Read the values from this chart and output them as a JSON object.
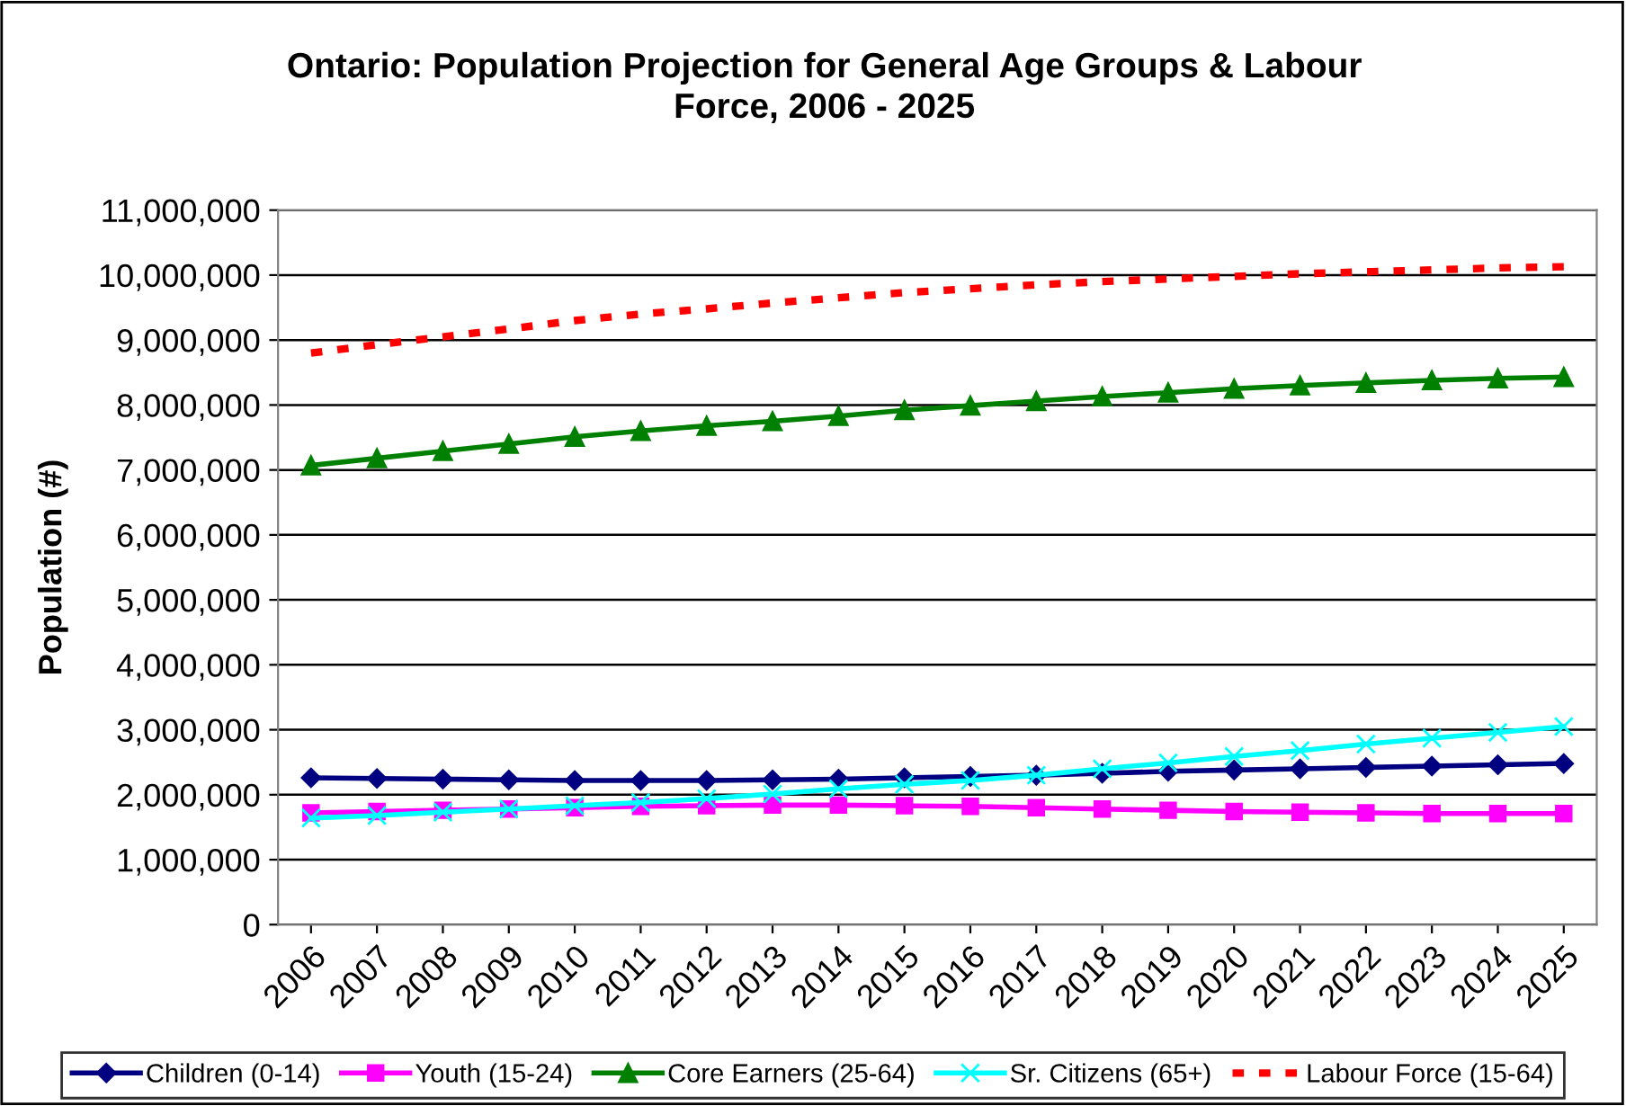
{
  "chart_data": {
    "type": "line",
    "title": "Ontario: Population Projection for General Age Groups & Labour Force, 2006 - 2025",
    "ylabel": "Population (#)",
    "categories": [
      "2006",
      "2007",
      "2008",
      "2009",
      "2010",
      "2011",
      "2012",
      "2013",
      "2014",
      "2015",
      "2016",
      "2017",
      "2018",
      "2019",
      "2020",
      "2021",
      "2022",
      "2023",
      "2024",
      "2025"
    ],
    "ylim": [
      0,
      11000000
    ],
    "yticks": [
      {
        "value": 0,
        "label": "0"
      },
      {
        "value": 1000000,
        "label": "1,000,000"
      },
      {
        "value": 2000000,
        "label": "2,000,000"
      },
      {
        "value": 3000000,
        "label": "3,000,000"
      },
      {
        "value": 4000000,
        "label": "4,000,000"
      },
      {
        "value": 5000000,
        "label": "5,000,000"
      },
      {
        "value": 6000000,
        "label": "6,000,000"
      },
      {
        "value": 7000000,
        "label": "7,000,000"
      },
      {
        "value": 8000000,
        "label": "8,000,000"
      },
      {
        "value": 9000000,
        "label": "9,000,000"
      },
      {
        "value": 10000000,
        "label": "10,000,000"
      },
      {
        "value": 11000000,
        "label": "11,000,000"
      }
    ],
    "grid": "y",
    "legend": "bottom",
    "series": [
      {
        "name": "Children (0-14)",
        "color": "#000080",
        "marker": "diamond",
        "line_style": "solid",
        "values": [
          2260000,
          2250000,
          2240000,
          2230000,
          2220000,
          2220000,
          2220000,
          2230000,
          2240000,
          2260000,
          2280000,
          2300000,
          2330000,
          2360000,
          2380000,
          2400000,
          2420000,
          2440000,
          2460000,
          2480000
        ]
      },
      {
        "name": "Youth (15-24)",
        "color": "#ff00ff",
        "marker": "square",
        "line_style": "solid",
        "values": [
          1720000,
          1740000,
          1760000,
          1780000,
          1800000,
          1820000,
          1830000,
          1840000,
          1840000,
          1830000,
          1820000,
          1800000,
          1780000,
          1760000,
          1740000,
          1730000,
          1720000,
          1710000,
          1710000,
          1710000
        ]
      },
      {
        "name": "Core Earners (25-64)",
        "color": "#008000",
        "marker": "triangle",
        "line_style": "solid",
        "values": [
          7070000,
          7180000,
          7290000,
          7400000,
          7510000,
          7600000,
          7680000,
          7750000,
          7830000,
          7920000,
          7990000,
          8060000,
          8130000,
          8190000,
          8250000,
          8300000,
          8340000,
          8380000,
          8410000,
          8430000
        ]
      },
      {
        "name": "Sr. Citizens (65+)",
        "color": "#00ffff",
        "marker": "cross",
        "line_style": "solid",
        "values": [
          1640000,
          1680000,
          1730000,
          1780000,
          1830000,
          1880000,
          1940000,
          2010000,
          2090000,
          2160000,
          2220000,
          2300000,
          2400000,
          2490000,
          2590000,
          2680000,
          2780000,
          2870000,
          2960000,
          3050000
        ]
      },
      {
        "name": "Labour Force (15-64)",
        "color": "#ff0000",
        "marker": "none",
        "line_style": "dashed",
        "values": [
          8800000,
          8930000,
          9050000,
          9170000,
          9300000,
          9400000,
          9480000,
          9570000,
          9650000,
          9730000,
          9790000,
          9850000,
          9900000,
          9940000,
          9980000,
          10020000,
          10050000,
          10080000,
          10110000,
          10130000
        ]
      }
    ]
  }
}
